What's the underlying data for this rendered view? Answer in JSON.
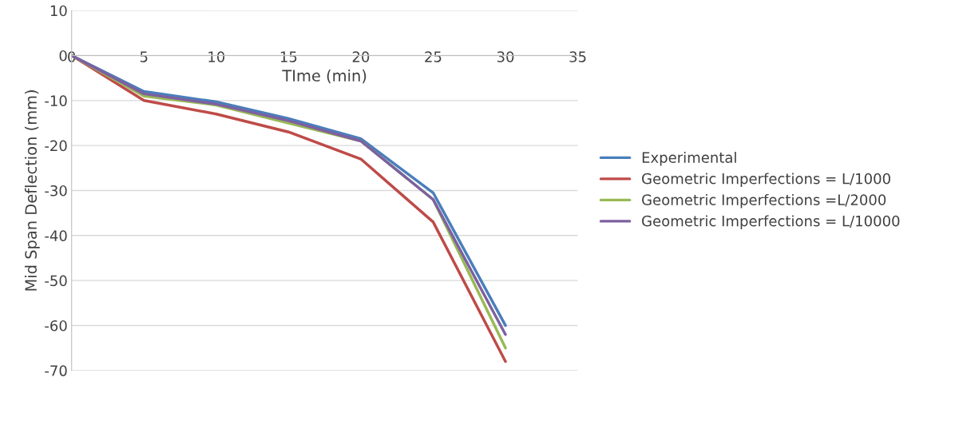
{
  "chart_data": {
    "type": "line",
    "xlabel": "TIme (min)",
    "ylabel": "Mid Span Deflection (mm)",
    "x": [
      0,
      5,
      10,
      15,
      20,
      25,
      30
    ],
    "series": [
      {
        "name": "Experimental",
        "color": "#4a7ebb",
        "values": [
          0,
          -8,
          -10.3,
          -14,
          -18.5,
          -30.5,
          -60
        ]
      },
      {
        "name": "Geometric Imperfections = L/1000",
        "color": "#be4b48",
        "values": [
          0,
          -10,
          -13,
          -17,
          -23,
          -37,
          -68
        ]
      },
      {
        "name": "Geometric Imperfections =L/2000",
        "color": "#98b954",
        "values": [
          0,
          -9,
          -11,
          -15,
          -19,
          -32,
          -65
        ]
      },
      {
        "name": "Geometric Imperfections = L/10000",
        "color": "#7d60a0",
        "values": [
          0,
          -8.5,
          -10.8,
          -14.5,
          -19,
          -32,
          -62
        ]
      }
    ],
    "xlim": [
      0,
      35
    ],
    "xticks": [
      0,
      5,
      10,
      15,
      20,
      25,
      30,
      35
    ],
    "ylim": [
      -70,
      10
    ],
    "yticks": [
      -70,
      -60,
      -50,
      -40,
      -30,
      -20,
      -10,
      0,
      10
    ],
    "grid": "y",
    "legend": "right",
    "marker": "none",
    "line_style": "solid"
  }
}
